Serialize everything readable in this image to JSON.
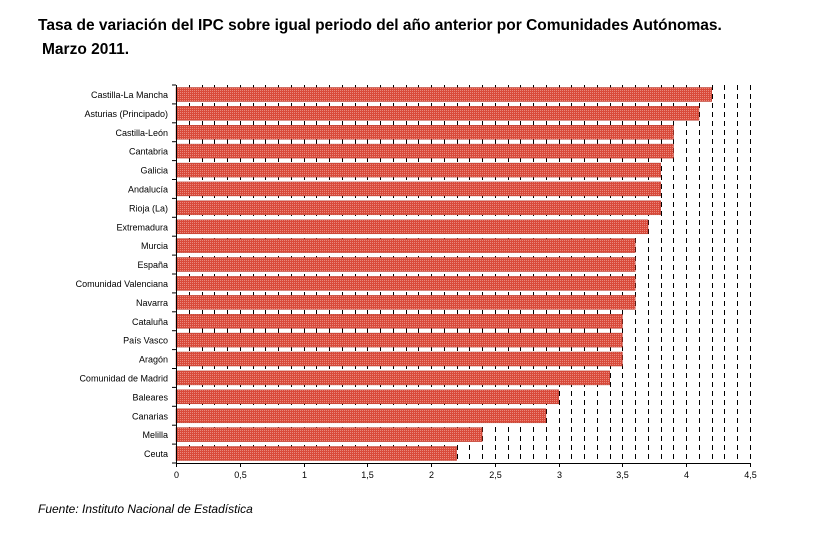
{
  "title_line1": "Tasa de variación del IPC sobre igual periodo del año anterior por Comunidades Autónomas.",
  "title_line2": "Marzo 2011.",
  "source": "Fuente: Instituto Nacional de Estadística",
  "chart_data": {
    "type": "bar",
    "orientation": "horizontal",
    "categories": [
      "Castilla-La Mancha",
      "Asturias (Principado)",
      "Castilla-León",
      "Cantabria",
      "Galicia",
      "Andalucía",
      "Rioja (La)",
      "Extremadura",
      "Murcia",
      "España",
      "Comunidad Valenciana",
      "Navarra",
      "Cataluña",
      "País Vasco",
      "Aragón",
      "Comunidad de Madrid",
      "Baleares",
      "Canarias",
      "Melilla",
      "Ceuta"
    ],
    "values": [
      4.2,
      4.1,
      3.9,
      3.9,
      3.8,
      3.8,
      3.8,
      3.7,
      3.6,
      3.6,
      3.6,
      3.6,
      3.5,
      3.5,
      3.5,
      3.4,
      3.0,
      2.9,
      2.4,
      2.2
    ],
    "xlim": [
      0,
      4.5
    ],
    "xticks": [
      "0",
      "0,5",
      "1",
      "1,5",
      "2",
      "2,5",
      "3",
      "3,5",
      "4",
      "4,5"
    ],
    "gridline_step": 0.1,
    "grid": true,
    "bar_color": "#d94a3a"
  }
}
